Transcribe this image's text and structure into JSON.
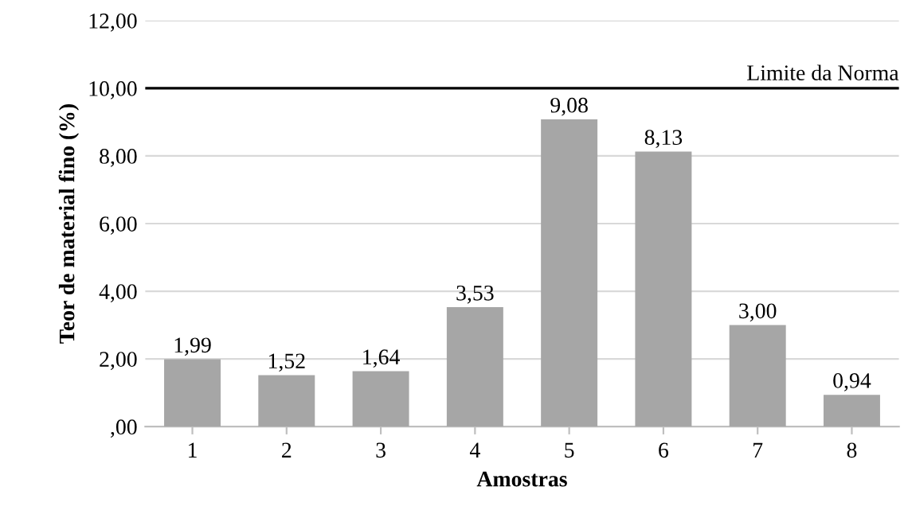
{
  "chart_data": {
    "type": "bar",
    "xlabel": "Amostras",
    "ylabel": "Teor de material fino (%)",
    "categories": [
      "1",
      "2",
      "3",
      "4",
      "5",
      "6",
      "7",
      "8"
    ],
    "values": [
      1.99,
      1.52,
      1.64,
      3.53,
      9.08,
      8.13,
      3.0,
      0.94
    ],
    "value_labels": [
      "1,99",
      "1,52",
      "1,64",
      "3,53",
      "9,08",
      "8,13",
      "3,00",
      "0,94"
    ],
    "color": "#a6a6a6",
    "ylim": [
      0,
      12
    ],
    "yticks": [
      {
        "value": 0,
        "label": ",00"
      },
      {
        "value": 2,
        "label": "2,00"
      },
      {
        "value": 4,
        "label": "4,00"
      },
      {
        "value": 6,
        "label": "6,00"
      },
      {
        "value": 8,
        "label": "8,00"
      },
      {
        "value": 10,
        "label": "10,00"
      },
      {
        "value": 12,
        "label": "12,00"
      }
    ],
    "ref_lines": [
      {
        "axis": "y",
        "value": 10,
        "label": "Limite da Norma",
        "color": "#000000"
      }
    ],
    "grid": "y"
  }
}
